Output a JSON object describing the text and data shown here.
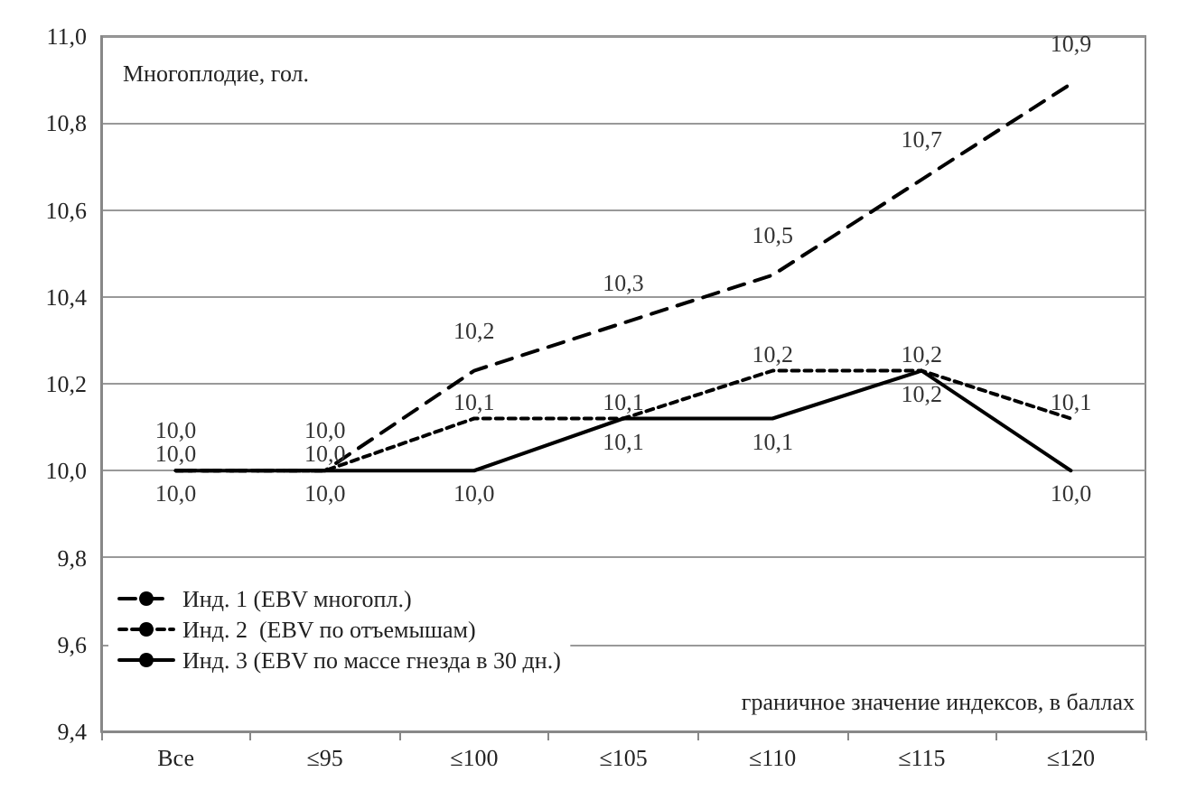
{
  "chart_data": {
    "type": "line",
    "ylabel": "Многоплодие, гол.",
    "xlabel": "граничное значение индексов, в баллах",
    "categories": [
      "Все",
      "≤95",
      "≤100",
      "≤105",
      "≤110",
      "≤115",
      "≤120"
    ],
    "series": [
      {
        "name": "Инд. 1 (EBV многопл.)",
        "color": "#000000",
        "line_style": "dashed",
        "values": [
          10.0,
          10.0,
          10.23,
          10.34,
          10.45,
          10.67,
          10.89
        ],
        "value_labels": [
          "10,0",
          "10,0",
          "10,2",
          "10,3",
          "10,5",
          "10,7",
          "10,9"
        ]
      },
      {
        "name": "Инд. 2  (EBV по отъемышам)",
        "color": "#000000",
        "line_style": "dashed",
        "values": [
          10.0,
          10.0,
          10.12,
          10.12,
          10.23,
          10.23,
          10.12
        ],
        "value_labels": [
          "10,0",
          "10,0",
          "10,1",
          "10,1",
          "10,2",
          "10,2",
          "10,1"
        ]
      },
      {
        "name": "Инд. 3 (EBV по массе гнезда в 30 дн.)",
        "color": "#000000",
        "line_style": "solid",
        "values": [
          10.0,
          10.0,
          10.0,
          10.12,
          10.12,
          10.23,
          10.0
        ],
        "value_labels": [
          "10,0",
          "10,0",
          "10,0",
          "10,1",
          "10,1",
          "10,2",
          "10,0"
        ]
      }
    ],
    "ylim": [
      9.4,
      11.0
    ],
    "yticks": [
      {
        "value": 9.4,
        "label": "9,4"
      },
      {
        "value": 9.6,
        "label": "9,6"
      },
      {
        "value": 9.8,
        "label": "9,8"
      },
      {
        "value": 10.0,
        "label": "10,0"
      },
      {
        "value": 10.2,
        "label": "10,2"
      },
      {
        "value": 10.4,
        "label": "10,4"
      },
      {
        "value": 10.6,
        "label": "10,6"
      },
      {
        "value": 10.8,
        "label": "10,8"
      },
      {
        "value": 11.0,
        "label": "11,0"
      }
    ],
    "grid": "y",
    "legend": "bottom left",
    "marker": "none"
  }
}
